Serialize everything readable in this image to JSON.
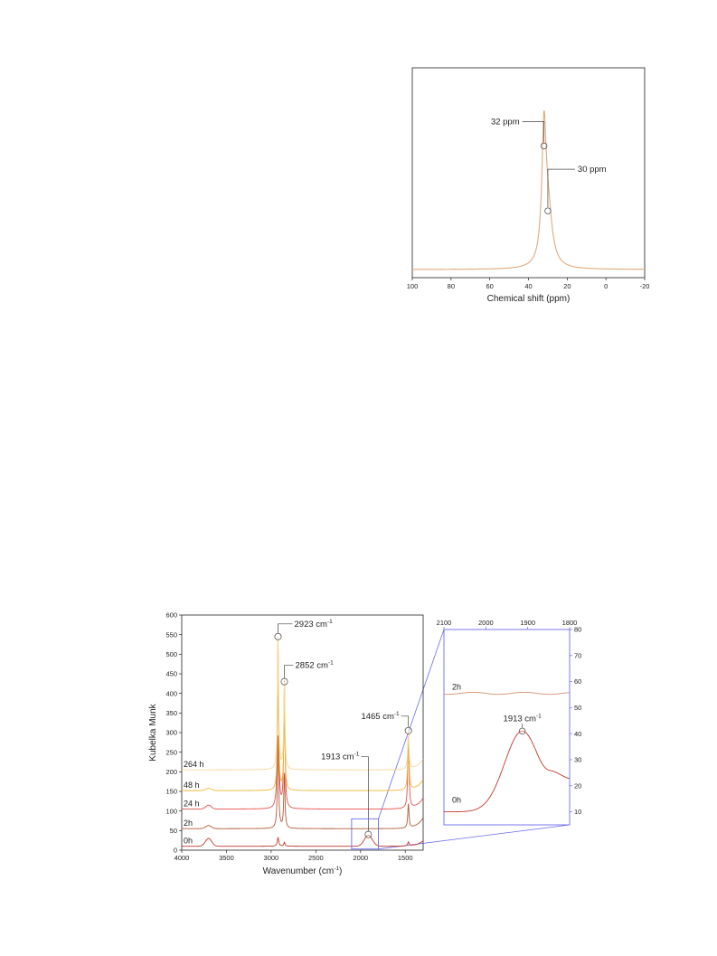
{
  "chart_data": [
    {
      "type": "line",
      "xlabel": "Chemical shift (ppm)",
      "ylabel": "",
      "xlim": [
        100,
        -20
      ],
      "x_reversed": true,
      "xticks": [
        "100",
        "80",
        "60",
        "40",
        "20",
        "0",
        "-20"
      ],
      "y_ticks_shown": false,
      "grid": false,
      "series": [
        {
          "color": "#e0aa7c",
          "peaks": [
            {
              "x": 32,
              "height": 0.99,
              "width": 1.3
            },
            {
              "x": 30,
              "height": 0.45,
              "width": 2.6
            }
          ]
        }
      ],
      "annotations": [
        {
          "text": "32 ppm",
          "x": 32,
          "y": 0.99
        },
        {
          "text": "30 ppm",
          "x": 30,
          "y": 0.47
        }
      ]
    },
    {
      "type": "line",
      "xlabel": "Wavenumber",
      "xlabel_unit_base": "(cm",
      "xlabel_unit_exp": "-1",
      "xlabel_unit_end": ")",
      "ylabel": "Kubelka Munk",
      "xlim": [
        4000,
        1300
      ],
      "x_reversed": true,
      "ylim": [
        0,
        600
      ],
      "xticks": [
        "4000",
        "3500",
        "3000",
        "2500",
        "2000",
        "1500"
      ],
      "yticks": [
        "0",
        "50",
        "100",
        "150",
        "200",
        "250",
        "300",
        "350",
        "400",
        "450",
        "500",
        "550",
        "600"
      ],
      "grid": false,
      "series": [
        {
          "name": "0h",
          "color": "#c0392b",
          "offset": 10,
          "peaks": [
            {
              "x": 2923,
              "height": 22,
              "width": 10
            },
            {
              "x": 2852,
              "height": 10,
              "width": 8
            },
            {
              "x": 1913,
              "height": 28,
              "width": 45
            },
            {
              "x": 1465,
              "height": 10,
              "width": 9
            },
            {
              "x": 3700,
              "height": 20,
              "width": 35
            }
          ]
        },
        {
          "name": "2h",
          "color": "#b05a38",
          "offset": 55,
          "peaks": [
            {
              "x": 2923,
              "height": 240,
              "width": 8
            },
            {
              "x": 2852,
              "height": 140,
              "width": 8
            },
            {
              "x": 1465,
              "height": 62,
              "width": 8
            },
            {
              "x": 3700,
              "height": 8,
              "width": 30
            }
          ]
        },
        {
          "name": "24 h",
          "color": "#e8504a",
          "offset": 105,
          "peaks": [
            {
              "x": 2923,
              "height": 440,
              "width": 8
            },
            {
              "x": 2852,
              "height": 325,
              "width": 8
            },
            {
              "x": 1465,
              "height": 198,
              "width": 8
            },
            {
              "x": 3700,
              "height": 10,
              "width": 30
            }
          ]
        },
        {
          "name": "48 h",
          "color": "#f0b830",
          "offset": 152,
          "peaks": [
            {
              "x": 2923,
              "height": 310,
              "width": 8
            },
            {
              "x": 2852,
              "height": 218,
              "width": 8
            },
            {
              "x": 1465,
              "height": 152,
              "width": 8
            },
            {
              "x": 3700,
              "height": 6,
              "width": 30
            }
          ]
        },
        {
          "name": "264 h",
          "color": "#f9d79a",
          "offset": 205,
          "peaks": [
            {
              "x": 2923,
              "height": 345,
              "width": 8
            },
            {
              "x": 2852,
              "height": 222,
              "width": 8
            },
            {
              "x": 1465,
              "height": 100,
              "width": 8
            }
          ]
        }
      ],
      "annotations": [
        {
          "text": "2923 cm",
          "exp": "-1",
          "x": 2923,
          "y": 545
        },
        {
          "text": "2852 cm",
          "exp": "-1",
          "x": 2852,
          "y": 430
        },
        {
          "text": "1465 cm",
          "exp": "-1",
          "x": 1465,
          "y": 305
        },
        {
          "text": "1913 cm",
          "exp": "-1",
          "x": 1913,
          "y": 40
        }
      ],
      "zoom_region": {
        "x": [
          2100,
          1800
        ],
        "y": [
          3,
          80
        ]
      }
    },
    {
      "type": "line",
      "xlim": [
        2100,
        1800
      ],
      "x_reversed": true,
      "ylim": [
        5,
        80
      ],
      "xticks": [
        "2100",
        "2000",
        "1900",
        "1800"
      ],
      "yticks": [
        "10",
        "20",
        "30",
        "40",
        "50",
        "60",
        "70",
        "80"
      ],
      "y_axis_side": "right",
      "frame_color": "#6b6bf0",
      "grid": false,
      "series": [
        {
          "name": "2h",
          "color": "#d59070",
          "base": 55.5
        },
        {
          "name": "0h",
          "color": "#c0392b",
          "base": 10,
          "peaks": [
            {
              "x": 1913,
              "height": 31,
              "width": 42
            }
          ]
        }
      ],
      "annotations": [
        {
          "text": "1913 cm",
          "exp": "-1",
          "x": 1913,
          "y": 41
        }
      ]
    }
  ]
}
